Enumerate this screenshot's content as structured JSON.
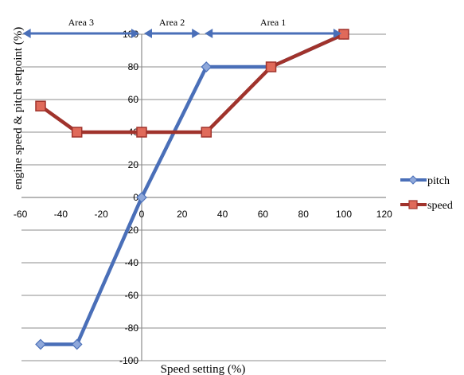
{
  "chart_data": {
    "type": "line",
    "xlabel": "Speed setting (%)",
    "ylabel": "engine speed & pitch setpoint (%)",
    "xlim": [
      -60,
      120
    ],
    "ylim": [
      -100,
      100
    ],
    "x_ticks": [
      "-60",
      "-40",
      "-20",
      "0",
      "20",
      "40",
      "60",
      "80",
      "100",
      "120"
    ],
    "y_ticks": [
      "100",
      "80",
      "60",
      "40",
      "20",
      "0",
      "-20",
      "-40",
      "-60",
      "-80",
      "-100"
    ],
    "grid": "horizontal",
    "legend_position": "right",
    "series": [
      {
        "name": "pitch",
        "color": "#4a6fb8",
        "marker": "diamond",
        "points": [
          [
            -50,
            -90
          ],
          [
            -32,
            -90
          ],
          [
            0,
            0
          ],
          [
            32,
            80
          ],
          [
            64,
            80
          ],
          [
            100,
            100
          ]
        ]
      },
      {
        "name": "speed",
        "color": "#a0332c",
        "marker": "square",
        "points": [
          [
            -50,
            56
          ],
          [
            -32,
            40
          ],
          [
            0,
            40
          ],
          [
            32,
            40
          ],
          [
            64,
            80
          ],
          [
            100,
            100
          ]
        ]
      }
    ],
    "annotations": [
      {
        "label": "Area 3",
        "from": -60,
        "to": 0
      },
      {
        "label": "Area 2",
        "from": 0,
        "to": 30
      },
      {
        "label": "Area 1",
        "from": 30,
        "to": 100
      }
    ]
  }
}
